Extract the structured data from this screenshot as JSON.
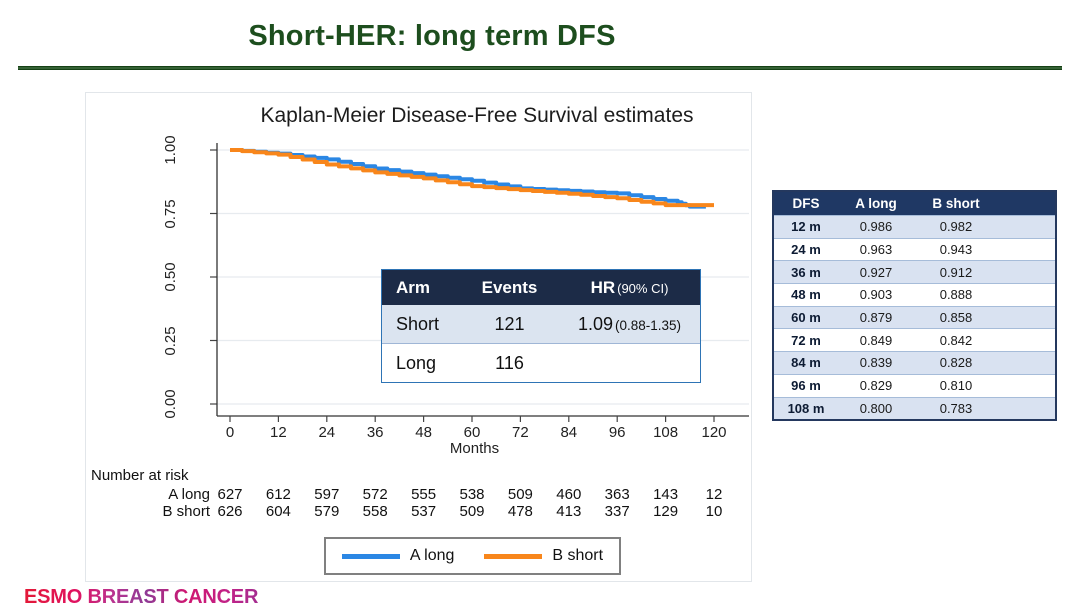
{
  "slide": {
    "title": "Short-HER: long term DFS"
  },
  "figure": {
    "title": "Kaplan-Meier Disease-Free Survival estimates",
    "xlabel": "Months"
  },
  "chart_data": {
    "type": "line",
    "subtype": "kaplan-meier-step",
    "title": "Kaplan-Meier Disease-Free Survival estimates",
    "xlabel": "Months",
    "ylabel": "",
    "xlim": [
      0,
      120
    ],
    "ylim": [
      0.0,
      1.0
    ],
    "grid": "horizontal",
    "legend_position": "bottom",
    "xticks": [
      0,
      12,
      24,
      36,
      48,
      60,
      72,
      84,
      96,
      108,
      120
    ],
    "yticks": [
      1.0,
      0.75,
      0.5,
      0.25,
      0.0
    ],
    "ytick_labels": [
      "1.00",
      "0.75",
      "0.50",
      "0.25",
      "0.00"
    ],
    "x": [
      0,
      12,
      24,
      36,
      48,
      60,
      72,
      84,
      96,
      108
    ],
    "series": [
      {
        "name": "A long",
        "color": "#2b87e4",
        "values": [
          1.0,
          0.986,
          0.963,
          0.927,
          0.903,
          0.879,
          0.849,
          0.839,
          0.829,
          0.8
        ],
        "tail": [
          [
            110,
            0.8
          ],
          [
            114,
            0.777
          ],
          [
            118,
            0.777
          ]
        ]
      },
      {
        "name": "B short",
        "color": "#f8861b",
        "values": [
          1.0,
          0.982,
          0.943,
          0.912,
          0.888,
          0.858,
          0.842,
          0.828,
          0.81,
          0.783
        ],
        "tail": [
          [
            120,
            0.783
          ]
        ]
      }
    ]
  },
  "hr_table": {
    "headers": {
      "arm": "Arm",
      "events": "Events",
      "hr": "HR",
      "ci": "(90% CI)"
    },
    "rows": [
      {
        "arm": "Short",
        "events": "121",
        "hr": "1.09",
        "ci": "(0.88-1.35)"
      },
      {
        "arm": "Long",
        "events": "116",
        "hr": "",
        "ci": ""
      }
    ]
  },
  "risk": {
    "label": "Number at risk",
    "rows": [
      {
        "name": "A long",
        "counts": [
          "627",
          "612",
          "597",
          "572",
          "555",
          "538",
          "509",
          "460",
          "363",
          "143",
          "12"
        ]
      },
      {
        "name": "B short",
        "counts": [
          "626",
          "604",
          "579",
          "558",
          "537",
          "509",
          "478",
          "413",
          "337",
          "129",
          "10"
        ]
      }
    ]
  },
  "legend": {
    "items": [
      {
        "label": "A long",
        "color": "#2b87e4"
      },
      {
        "label": "B short",
        "color": "#f8861b"
      }
    ]
  },
  "dfs_table": {
    "headers": [
      "DFS",
      "A long",
      "B short"
    ],
    "rows": [
      [
        "12 m",
        "0.986",
        "0.982"
      ],
      [
        "24 m",
        "0.963",
        "0.943"
      ],
      [
        "36 m",
        "0.927",
        "0.912"
      ],
      [
        "48 m",
        "0.903",
        "0.888"
      ],
      [
        "60 m",
        "0.879",
        "0.858"
      ],
      [
        "72 m",
        "0.849",
        "0.842"
      ],
      [
        "84 m",
        "0.839",
        "0.828"
      ],
      [
        "96 m",
        "0.829",
        "0.810"
      ],
      [
        "108 m",
        "0.800",
        "0.783"
      ]
    ]
  },
  "footer": {
    "logo": "ESMO BREAST CANCER"
  },
  "colors": {
    "title_green": "#1d4e1e",
    "header_navy_inset": "#1c2b47",
    "header_navy_table": "#1f3864",
    "row_light_blue": "#d9e2f1",
    "series_blue": "#2b87e4",
    "series_orange": "#f8861b",
    "gridline": "#e7ebef"
  }
}
